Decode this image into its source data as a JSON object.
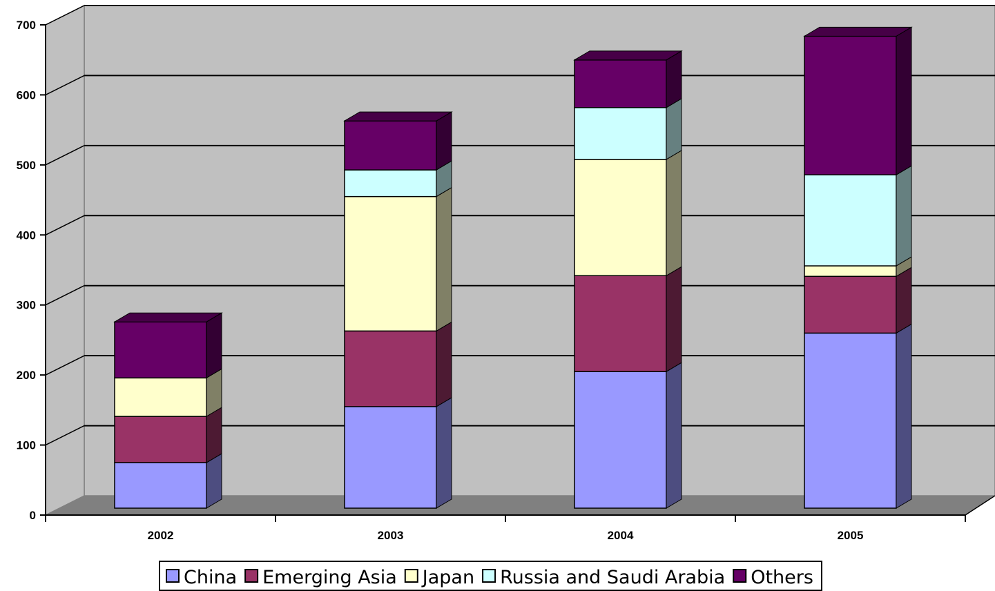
{
  "chart_data": {
    "type": "bar",
    "stacked": true,
    "three_d": true,
    "categories": [
      "2002",
      "2003",
      "2004",
      "2005"
    ],
    "series": [
      {
        "name": "China",
        "values": [
          65,
          145,
          195,
          250
        ],
        "color": "#9999FF"
      },
      {
        "name": "Emerging Asia",
        "values": [
          66,
          108,
          137,
          81
        ],
        "color": "#993366"
      },
      {
        "name": "Japan",
        "values": [
          55,
          192,
          166,
          15
        ],
        "color": "#FFFFCC"
      },
      {
        "name": "Russia and Saudi Arabia",
        "values": [
          0,
          38,
          74,
          130
        ],
        "color": "#CCFFFF"
      },
      {
        "name": "Others",
        "values": [
          80,
          70,
          68,
          198
        ],
        "color": "#660066"
      }
    ],
    "y_ticks": [
      "0",
      "100",
      "200",
      "300",
      "400",
      "500",
      "600",
      "700"
    ],
    "ylim": [
      0,
      700
    ],
    "title": "",
    "xlabel": "",
    "ylabel": "",
    "grid": true,
    "legend_position": "bottom",
    "wall_color": "#C0C0C0",
    "floor_color": "#808080"
  }
}
